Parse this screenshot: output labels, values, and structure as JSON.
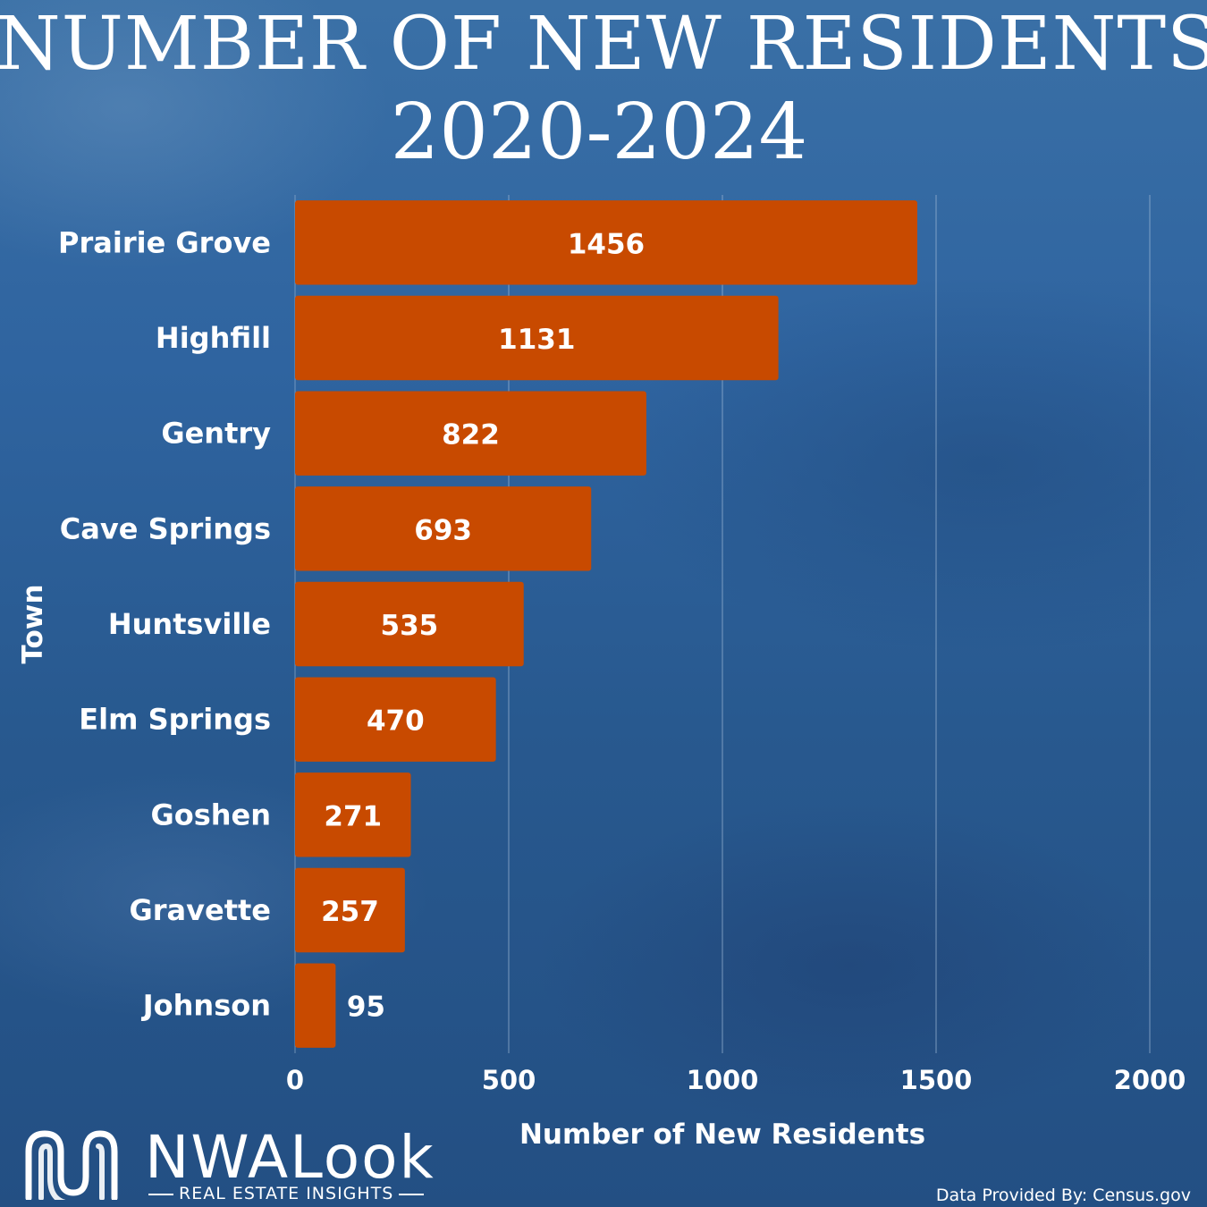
{
  "colors": {
    "bar": "#c84a00",
    "background": "#2d5f98",
    "text": "#ffffff",
    "grid": "#9fb9d6"
  },
  "chart_data": {
    "type": "bar",
    "orientation": "horizontal",
    "title": [
      "NUMBER OF NEW RESIDENTS",
      "2020-2024"
    ],
    "xlabel": "Number of New Residents",
    "ylabel": "Town",
    "categories": [
      "Prairie Grove",
      "Highfill",
      "Gentry",
      "Cave Springs",
      "Huntsville",
      "Elm Springs",
      "Goshen",
      "Gravette",
      "Johnson"
    ],
    "values": [
      1456,
      1131,
      822,
      693,
      535,
      470,
      271,
      257,
      95
    ],
    "xlim": [
      0,
      2000
    ],
    "xticks": [
      0,
      500,
      1000,
      1500,
      2000
    ],
    "grid": "vertical",
    "legend": "none"
  },
  "branding": {
    "logo_name": "NWALook",
    "logo_tagline": "REAL ESTATE INSIGHTS",
    "logo_icon": "nwa-wave-logo-icon"
  },
  "source": "Data Provided By: Census.gov"
}
